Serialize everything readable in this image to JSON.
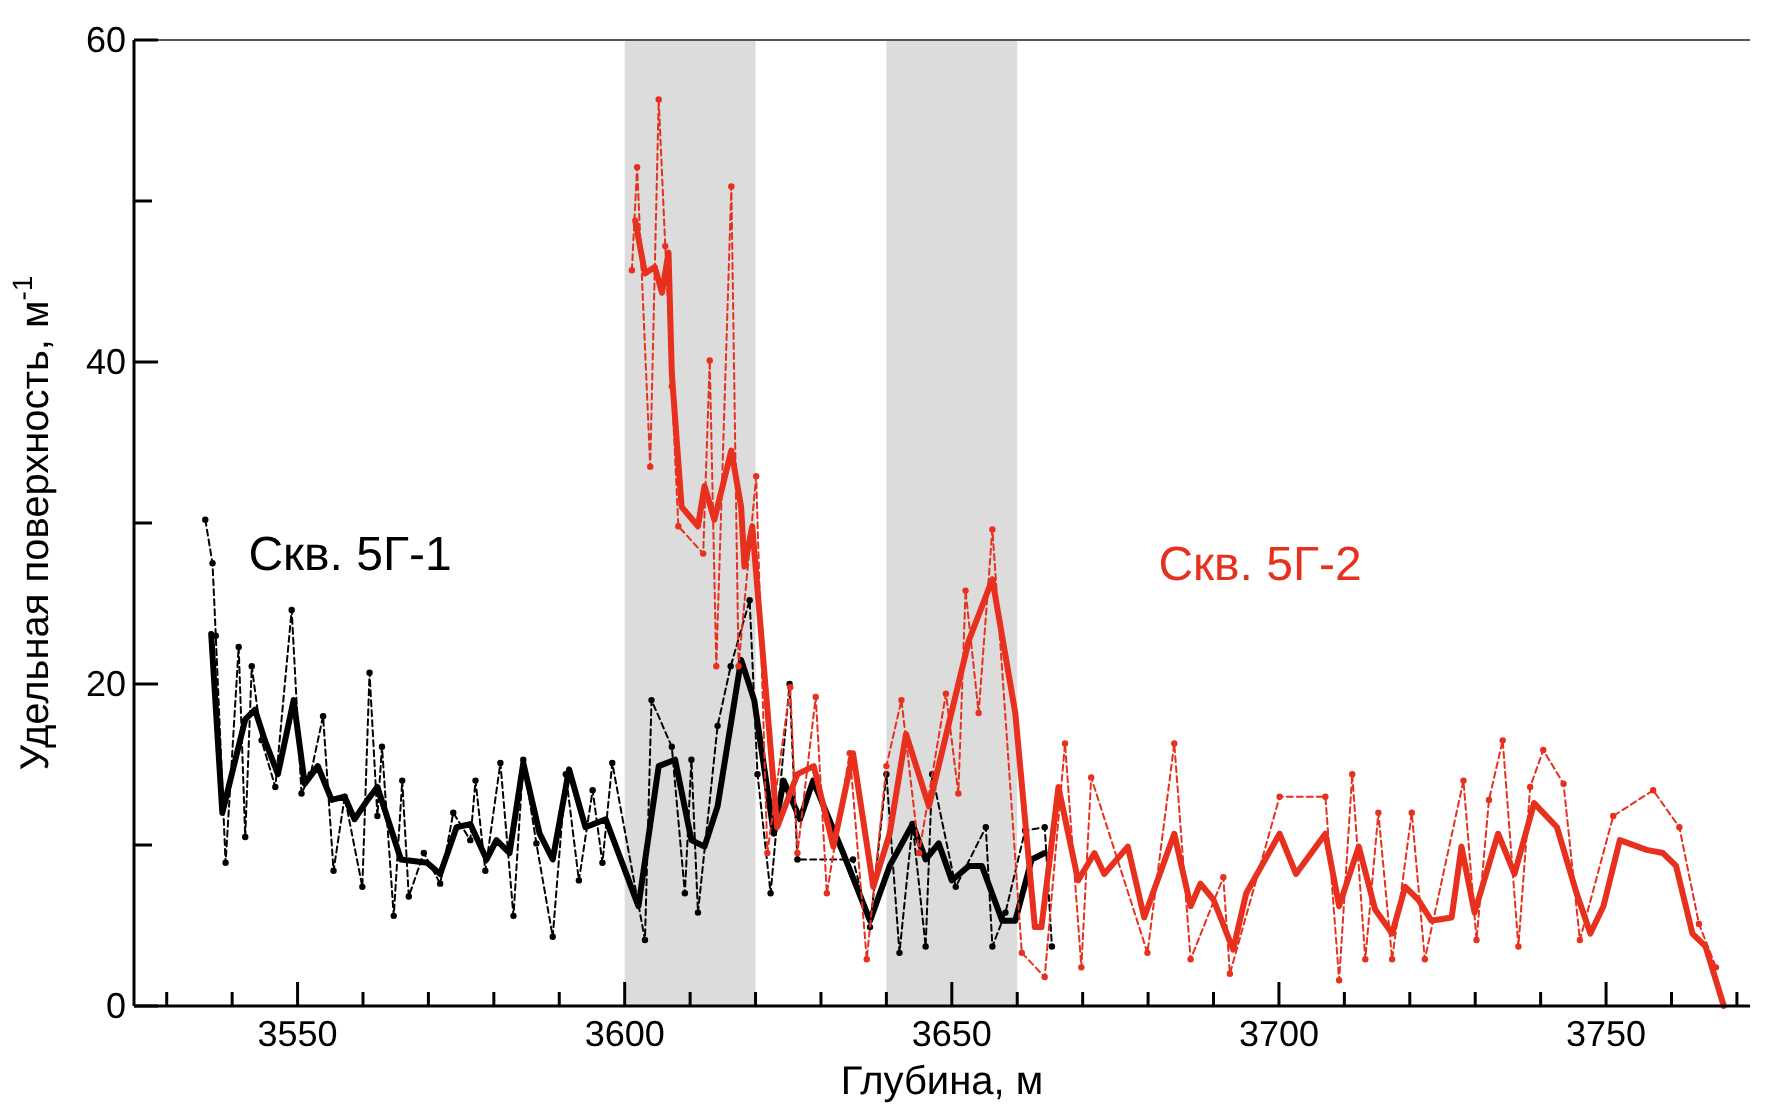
{
  "chart_data": {
    "type": "line",
    "xlabel": "Глубина, м",
    "ylabel": "Удельная поверхность, м$^{-1}$",
    "xlim": [
      3525,
      3772
    ],
    "ylim": [
      0,
      60
    ],
    "xticks": [
      {
        "value": 3530,
        "label": null
      },
      {
        "value": 3540,
        "label": null
      },
      3550,
      {
        "value": 3560,
        "label": null
      },
      {
        "value": 3570,
        "label": null
      },
      {
        "value": 3580,
        "label": null
      },
      {
        "value": 3590,
        "label": null
      },
      3600,
      {
        "value": 3610,
        "label": null
      },
      {
        "value": 3620,
        "label": null
      },
      {
        "value": 3630,
        "label": null
      },
      {
        "value": 3640,
        "label": null
      },
      3650,
      {
        "value": 3660,
        "label": null
      },
      {
        "value": 3670,
        "label": null
      },
      {
        "value": 3680,
        "label": null
      },
      {
        "value": 3690,
        "label": null
      },
      3700,
      {
        "value": 3710,
        "label": null
      },
      {
        "value": 3720,
        "label": null
      },
      {
        "value": 3730,
        "label": null
      },
      {
        "value": 3740,
        "label": null
      },
      3750,
      {
        "value": 3760,
        "label": null
      },
      {
        "value": 3770,
        "label": null
      }
    ],
    "yticks": [
      0,
      {
        "value": 10,
        "label": null
      },
      20,
      {
        "value": 30,
        "label": null
      },
      40,
      {
        "value": 50,
        "label": null
      },
      60
    ],
    "grid": false,
    "bands": [
      {
        "axis": "x",
        "from": 3600,
        "to": 3620,
        "color": "#dcdcdc"
      },
      {
        "axis": "x",
        "from": 3640,
        "to": 3660,
        "color": "#dcdcdc"
      }
    ],
    "series": [
      {
        "color": "#000000",
        "marker": "circle",
        "line_style": "dashed",
        "x": [
          3535.9,
          3537,
          3537.5,
          3539,
          3541,
          3542,
          3543,
          3544.5,
          3546.6,
          3549.1,
          3550.6,
          3552,
          3553.9,
          3555.5,
          3557.2,
          3559.9,
          3561,
          3562.2,
          3562.9,
          3564.7,
          3566,
          3567,
          3569.3,
          3571.8,
          3573.8,
          3576.4,
          3577.2,
          3578.7,
          3581,
          3583,
          3584.5,
          3586.5,
          3589,
          3591,
          3593,
          3595.1,
          3596.6,
          3598.1,
          3603.1,
          3604.1,
          3607.2,
          3609.2,
          3610.2,
          3611.2,
          3614.2,
          3616.2,
          3619.1,
          3620.3,
          3622.3,
          3625.2,
          3626.4,
          3634.9,
          3637.5,
          3640,
          3642,
          3644,
          3646,
          3647,
          3650.6,
          3655.2,
          3656.2,
          3658.2,
          3661.2,
          3664.2,
          3665.3
        ],
        "values": [
          30.2,
          27.5,
          23,
          8.9,
          22.3,
          10.5,
          21.1,
          16.5,
          13.6,
          24.6,
          13.2,
          14.4,
          18,
          8.4,
          13,
          7.4,
          20.7,
          11.8,
          16.1,
          5.6,
          14,
          6.8,
          9.5,
          7.6,
          12,
          10.3,
          14,
          8.4,
          15.1,
          5.6,
          15.3,
          10.1,
          4.3,
          14.4,
          7.8,
          13.4,
          8.9,
          15.1,
          4.1,
          19,
          16.1,
          7,
          15.3,
          5.8,
          17.4,
          21.1,
          25.2,
          14.4,
          7,
          20,
          9.1,
          9.1,
          4.9,
          14.4,
          3.3,
          11.3,
          3.7,
          14.4,
          7.4,
          11.1,
          3.7,
          5.8,
          10.9,
          11.1,
          3.7
        ]
      },
      {
        "name": "Скв. 5Г-1",
        "color": "#000000",
        "marker": "none",
        "line_style": "solid",
        "x": [
          3536.8,
          3538.5,
          3542,
          3543.5,
          3545,
          3547,
          3549.4,
          3551.1,
          3553.1,
          3555.2,
          3557.2,
          3558.7,
          3560.7,
          3562.2,
          3565.8,
          3569.8,
          3571.8,
          3574.3,
          3576.4,
          3578.9,
          3580.4,
          3582.4,
          3584.5,
          3587,
          3589,
          3591.5,
          3594,
          3597.1,
          3602.1,
          3605.2,
          3607.7,
          3610.2,
          3612.2,
          3614.2,
          3617.8,
          3619.8,
          3622.8,
          3624.3,
          3626.8,
          3628.8,
          3633.4,
          3637.5,
          3640.5,
          3644,
          3646,
          3648,
          3650,
          3652.6,
          3654.6,
          3657.7,
          3659.7,
          3662.2,
          3664.2
        ],
        "values": [
          23.1,
          12,
          17.8,
          18.4,
          16.5,
          14.4,
          19,
          13.8,
          14.9,
          12.8,
          13,
          11.6,
          12.8,
          13.6,
          9.1,
          8.9,
          8.2,
          11.1,
          11.3,
          9.1,
          10.3,
          9.5,
          15.1,
          10.7,
          9.1,
          14.7,
          11.1,
          11.6,
          6.2,
          14.9,
          15.3,
          10.3,
          9.9,
          12.4,
          21.5,
          19,
          10.7,
          14,
          11.6,
          14,
          9.5,
          5.3,
          8.7,
          11.3,
          9.1,
          10.1,
          7.8,
          8.7,
          8.7,
          5.3,
          5.3,
          9.1,
          9.5
        ]
      },
      {
        "color": "#e8301e",
        "marker": "circle",
        "line_style": "dashed",
        "x": [
          3601.1,
          3601.9,
          3603.9,
          3605.2,
          3606.2,
          3607.2,
          3608.2,
          3612,
          3613,
          3614,
          3616.3,
          3617.4,
          3620.1,
          3621.8,
          3625.3,
          3626.4,
          3629.2,
          3630.9,
          3634.4,
          3637,
          3640,
          3642.3,
          3645,
          3649.1,
          3651,
          3652.1,
          3654.1,
          3656.2,
          3660.7,
          3664.2,
          3667.3,
          3669.8,
          3671.3,
          3679.9,
          3684,
          3686.5,
          3691.5,
          3692.5,
          3700.1,
          3707.1,
          3709.2,
          3711.2,
          3713.2,
          3715.2,
          3717.3,
          3720.3,
          3722.3,
          3728.2,
          3730.2,
          3732.1,
          3734.2,
          3736.6,
          3738.4,
          3740.4,
          3743.5,
          3746,
          3751.1,
          3757.2,
          3761.2,
          3764.2,
          3766.8
        ],
        "values": [
          45.7,
          52.1,
          33.5,
          56.3,
          47.2,
          38.5,
          29.8,
          28.1,
          40.1,
          21.1,
          50.9,
          21.1,
          32.9,
          9.5,
          19.8,
          9.5,
          19.2,
          7,
          15.7,
          2.9,
          14.9,
          19,
          9.5,
          19.4,
          13.2,
          25.8,
          18.2,
          29.6,
          3.3,
          1.8,
          16.3,
          2.4,
          14.2,
          3.3,
          16.3,
          2.9,
          8,
          2,
          13,
          13,
          1.6,
          14.4,
          2.9,
          12,
          2.9,
          12,
          2.9,
          14,
          4.1,
          12.8,
          16.5,
          3.7,
          13.6,
          15.9,
          13.8,
          4.1,
          11.8,
          13.4,
          11.1,
          5.1,
          2.4
        ]
      },
      {
        "name": "Скв. 5Г-2",
        "color": "#e8301e",
        "marker": "none",
        "line_style": "solid",
        "x": [
          3601.6,
          3603.1,
          3604.6,
          3605.7,
          3606.7,
          3607.2,
          3608.7,
          3611.2,
          3612.2,
          3613.7,
          3616.3,
          3617.8,
          3618.3,
          3619.5,
          3623.3,
          3626.4,
          3628.9,
          3631.9,
          3634.9,
          3638,
          3640.5,
          3643,
          3646.5,
          3652.6,
          3656.2,
          3659.7,
          3662.7,
          3663.7,
          3666.3,
          3669.3,
          3671.8,
          3673.3,
          3676.9,
          3679.4,
          3684,
          3686.5,
          3688,
          3690,
          3693,
          3695,
          3700.1,
          3702.6,
          3707.1,
          3709.2,
          3712.2,
          3714.7,
          3717.3,
          3719.3,
          3721.3,
          3723.3,
          3726.4,
          3727.9,
          3729.9,
          3733.5,
          3736,
          3739,
          3742.5,
          3745.5,
          3747.6,
          3749.6,
          3752.1,
          3756.2,
          3758.7,
          3760.7,
          3763.2,
          3765.2,
          3768
        ],
        "values": [
          48.8,
          45.5,
          45.9,
          44.3,
          46.8,
          39.3,
          31,
          29.8,
          32.3,
          30.2,
          34.5,
          31,
          27.3,
          29.8,
          11.1,
          14.4,
          14.9,
          9.9,
          15.7,
          7.4,
          10.7,
          16.9,
          12.4,
          22.7,
          26.5,
          18.2,
          4.9,
          4.9,
          13.6,
          7.8,
          9.5,
          8.2,
          9.9,
          5.5,
          10.7,
          6.2,
          7.6,
          6.6,
          3.5,
          7,
          10.7,
          8.2,
          10.7,
          6.2,
          9.9,
          6,
          4.5,
          7.4,
          6.6,
          5.3,
          5.5,
          9.9,
          5.8,
          10.7,
          8.2,
          12.6,
          11.1,
          7,
          4.5,
          6.2,
          10.3,
          9.7,
          9.5,
          8.7,
          4.5,
          3.7,
          0
        ]
      }
    ]
  }
}
